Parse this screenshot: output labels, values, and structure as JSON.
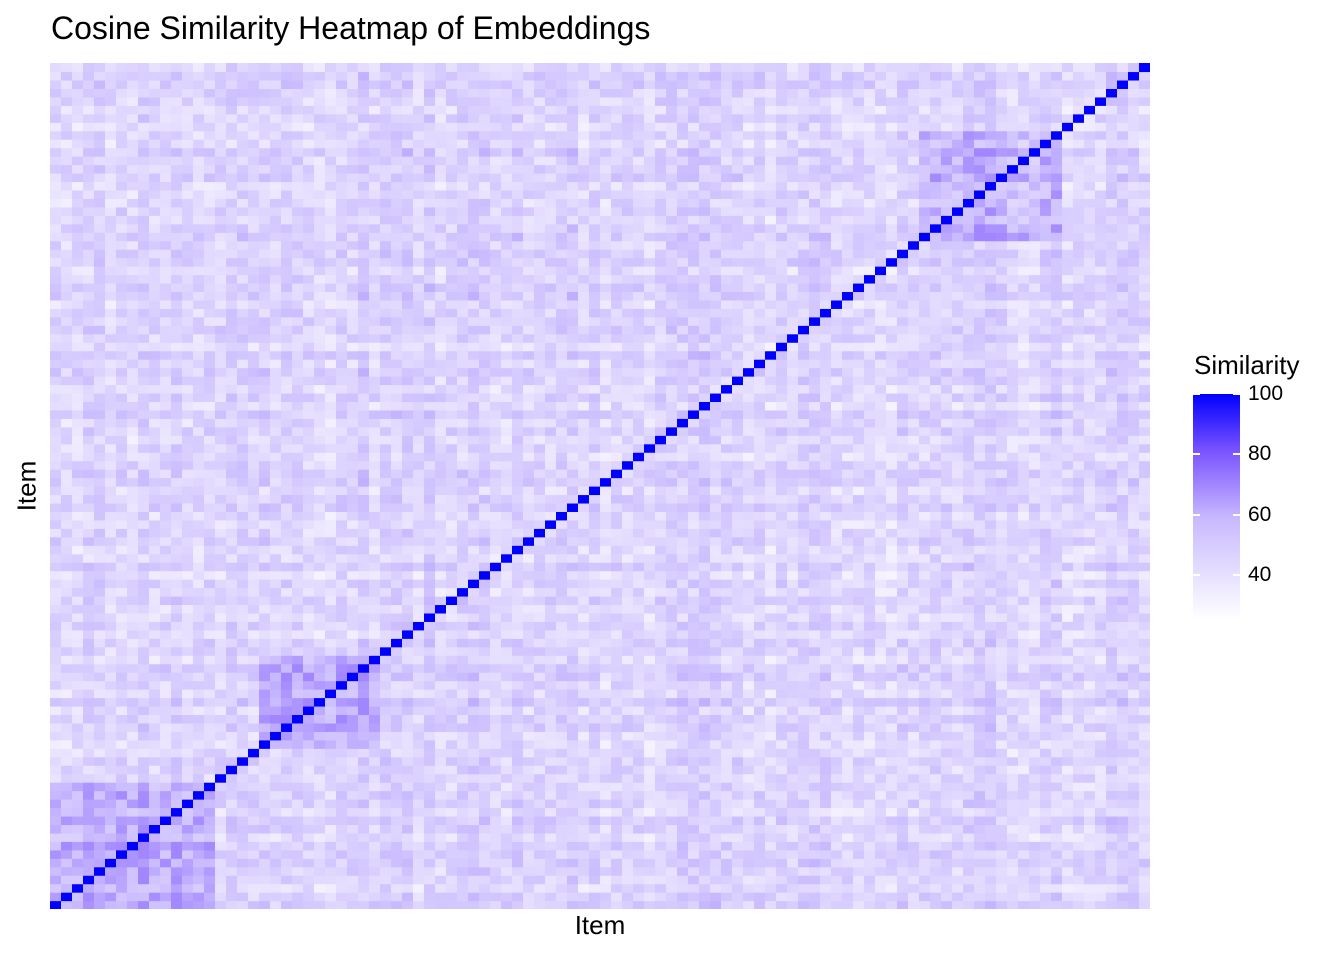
{
  "chart_data": {
    "type": "heatmap",
    "title": "Cosine Similarity Heatmap of Embeddings",
    "xlabel": "Item",
    "ylabel": "Item",
    "n_items": 100,
    "diagonal_value": 100,
    "off_diagonal_range": [
      25,
      70
    ],
    "clusters": [
      {
        "start": 1,
        "end": 15,
        "level": 60
      },
      {
        "start": 20,
        "end": 30,
        "level": 62
      },
      {
        "start": 80,
        "end": 92,
        "level": 58
      }
    ],
    "axis_ticks_visible": false,
    "legend": {
      "title": "Similarity",
      "position": "right",
      "range": [
        25,
        100
      ],
      "ticks": [
        "40",
        "60",
        "80",
        "100"
      ],
      "tick_values": [
        40,
        60,
        80,
        100
      ],
      "low_color": "#ffffff",
      "high_color": "#0000ff"
    }
  }
}
